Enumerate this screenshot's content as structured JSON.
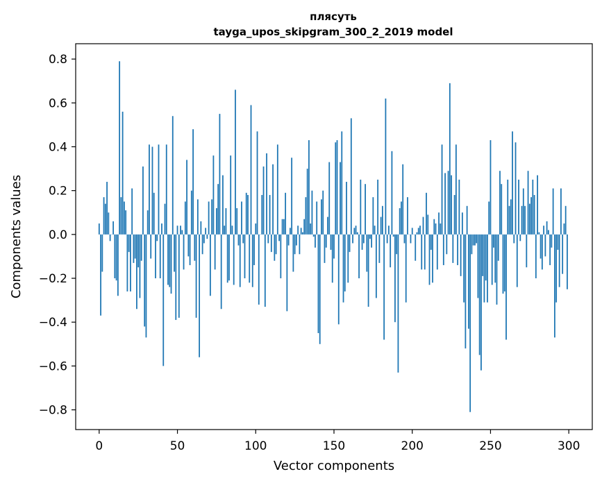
{
  "chart_data": {
    "type": "bar",
    "title": "плясуть",
    "subtitle": "tayga_upos_skipgram_300_2_2019 model",
    "xlabel": "Vector components",
    "ylabel": "Components values",
    "xlim": [
      -15,
      315
    ],
    "ylim": [
      -0.89,
      0.87
    ],
    "xticks": [
      0,
      50,
      100,
      150,
      200,
      250,
      300
    ],
    "xtick_labels": [
      "0",
      "50",
      "100",
      "150",
      "200",
      "250",
      "300"
    ],
    "yticks": [
      0.8,
      0.6,
      0.4,
      0.2,
      0.0,
      -0.2,
      -0.4,
      -0.6,
      -0.8
    ],
    "ytick_labels": [
      "0.8",
      "0.6",
      "0.4",
      "0.2",
      "0.0",
      "−0.2",
      "−0.4",
      "−0.6",
      "−0.8"
    ],
    "bar_color": "#1f77b4",
    "grid": false,
    "values": [
      0.05,
      -0.37,
      -0.17,
      0.17,
      0.14,
      0.24,
      0.1,
      -0.03,
      0.0,
      0.06,
      -0.2,
      -0.21,
      -0.28,
      0.79,
      0.17,
      0.56,
      0.15,
      0.11,
      -0.26,
      -0.08,
      -0.26,
      0.21,
      -0.13,
      -0.11,
      -0.34,
      -0.15,
      -0.29,
      -0.12,
      0.31,
      -0.42,
      -0.47,
      0.11,
      0.41,
      -0.11,
      0.4,
      0.19,
      -0.2,
      -0.03,
      0.41,
      -0.2,
      0.05,
      -0.6,
      0.14,
      0.41,
      -0.23,
      -0.24,
      -0.27,
      0.54,
      -0.17,
      -0.39,
      0.04,
      -0.38,
      0.04,
      0.02,
      -0.16,
      0.15,
      0.34,
      -0.1,
      -0.14,
      0.2,
      0.48,
      -0.12,
      -0.38,
      0.16,
      -0.56,
      0.06,
      -0.09,
      -0.04,
      0.03,
      -0.02,
      0.15,
      -0.28,
      0.16,
      0.36,
      -0.16,
      0.12,
      0.23,
      0.55,
      -0.34,
      0.27,
      0.04,
      0.12,
      -0.22,
      -0.21,
      0.36,
      0.04,
      -0.23,
      0.66,
      0.12,
      -0.05,
      -0.24,
      0.15,
      -0.04,
      -0.2,
      0.19,
      0.18,
      -0.22,
      0.59,
      -0.24,
      -0.14,
      0.05,
      0.47,
      -0.32,
      0.0,
      0.18,
      0.31,
      -0.33,
      0.37,
      -0.04,
      0.18,
      -0.08,
      0.32,
      -0.12,
      -0.09,
      0.41,
      -0.03,
      -0.2,
      0.07,
      0.07,
      0.19,
      -0.35,
      -0.05,
      0.03,
      0.35,
      -0.17,
      -0.09,
      -0.05,
      0.04,
      -0.09,
      0.03,
      0.01,
      0.07,
      0.17,
      0.3,
      0.43,
      0.05,
      0.2,
      -0.01,
      -0.06,
      0.15,
      -0.45,
      -0.5,
      0.16,
      0.2,
      -0.13,
      -0.06,
      0.08,
      0.33,
      -0.07,
      -0.22,
      -0.11,
      0.42,
      0.43,
      -0.41,
      0.33,
      0.47,
      -0.31,
      -0.26,
      0.24,
      -0.22,
      -0.08,
      0.53,
      -0.04,
      0.03,
      0.04,
      0.01,
      -0.2,
      0.25,
      -0.07,
      -0.04,
      0.23,
      -0.17,
      -0.33,
      -0.02,
      -0.06,
      0.17,
      0.04,
      -0.29,
      0.25,
      -0.13,
      0.08,
      0.13,
      -0.48,
      0.62,
      -0.04,
      0.04,
      -0.15,
      0.38,
      -0.01,
      -0.4,
      -0.09,
      -0.63,
      0.12,
      0.15,
      0.32,
      -0.04,
      -0.31,
      0.17,
      0.0,
      -0.04,
      0.03,
      0.0,
      -0.12,
      0.01,
      0.03,
      0.04,
      -0.16,
      0.08,
      -0.16,
      0.19,
      0.09,
      -0.23,
      -0.07,
      -0.22,
      0.07,
      0.05,
      -0.16,
      0.1,
      0.05,
      0.41,
      -0.14,
      0.28,
      -0.09,
      0.29,
      0.69,
      0.27,
      -0.13,
      0.18,
      0.41,
      -0.14,
      0.25,
      -0.19,
      0.1,
      -0.31,
      -0.52,
      0.13,
      -0.43,
      -0.81,
      -0.09,
      -0.05,
      -0.05,
      -0.04,
      -0.29,
      -0.55,
      -0.62,
      -0.19,
      -0.31,
      -0.21,
      -0.31,
      0.15,
      0.43,
      -0.23,
      -0.06,
      -0.22,
      -0.32,
      -0.12,
      0.29,
      0.23,
      -0.27,
      -0.26,
      -0.48,
      0.25,
      0.13,
      0.16,
      0.47,
      -0.04,
      0.42,
      -0.24,
      0.25,
      -0.03,
      0.13,
      0.21,
      0.13,
      -0.15,
      0.29,
      0.14,
      0.17,
      0.25,
      0.18,
      -0.2,
      0.27,
      0.01,
      -0.11,
      -0.16,
      0.04,
      -0.1,
      0.06,
      0.02,
      -0.14,
      -0.06,
      0.21,
      -0.47,
      -0.31,
      -0.07,
      -0.24,
      0.21,
      -0.18,
      0.05,
      0.13,
      -0.25
    ]
  }
}
